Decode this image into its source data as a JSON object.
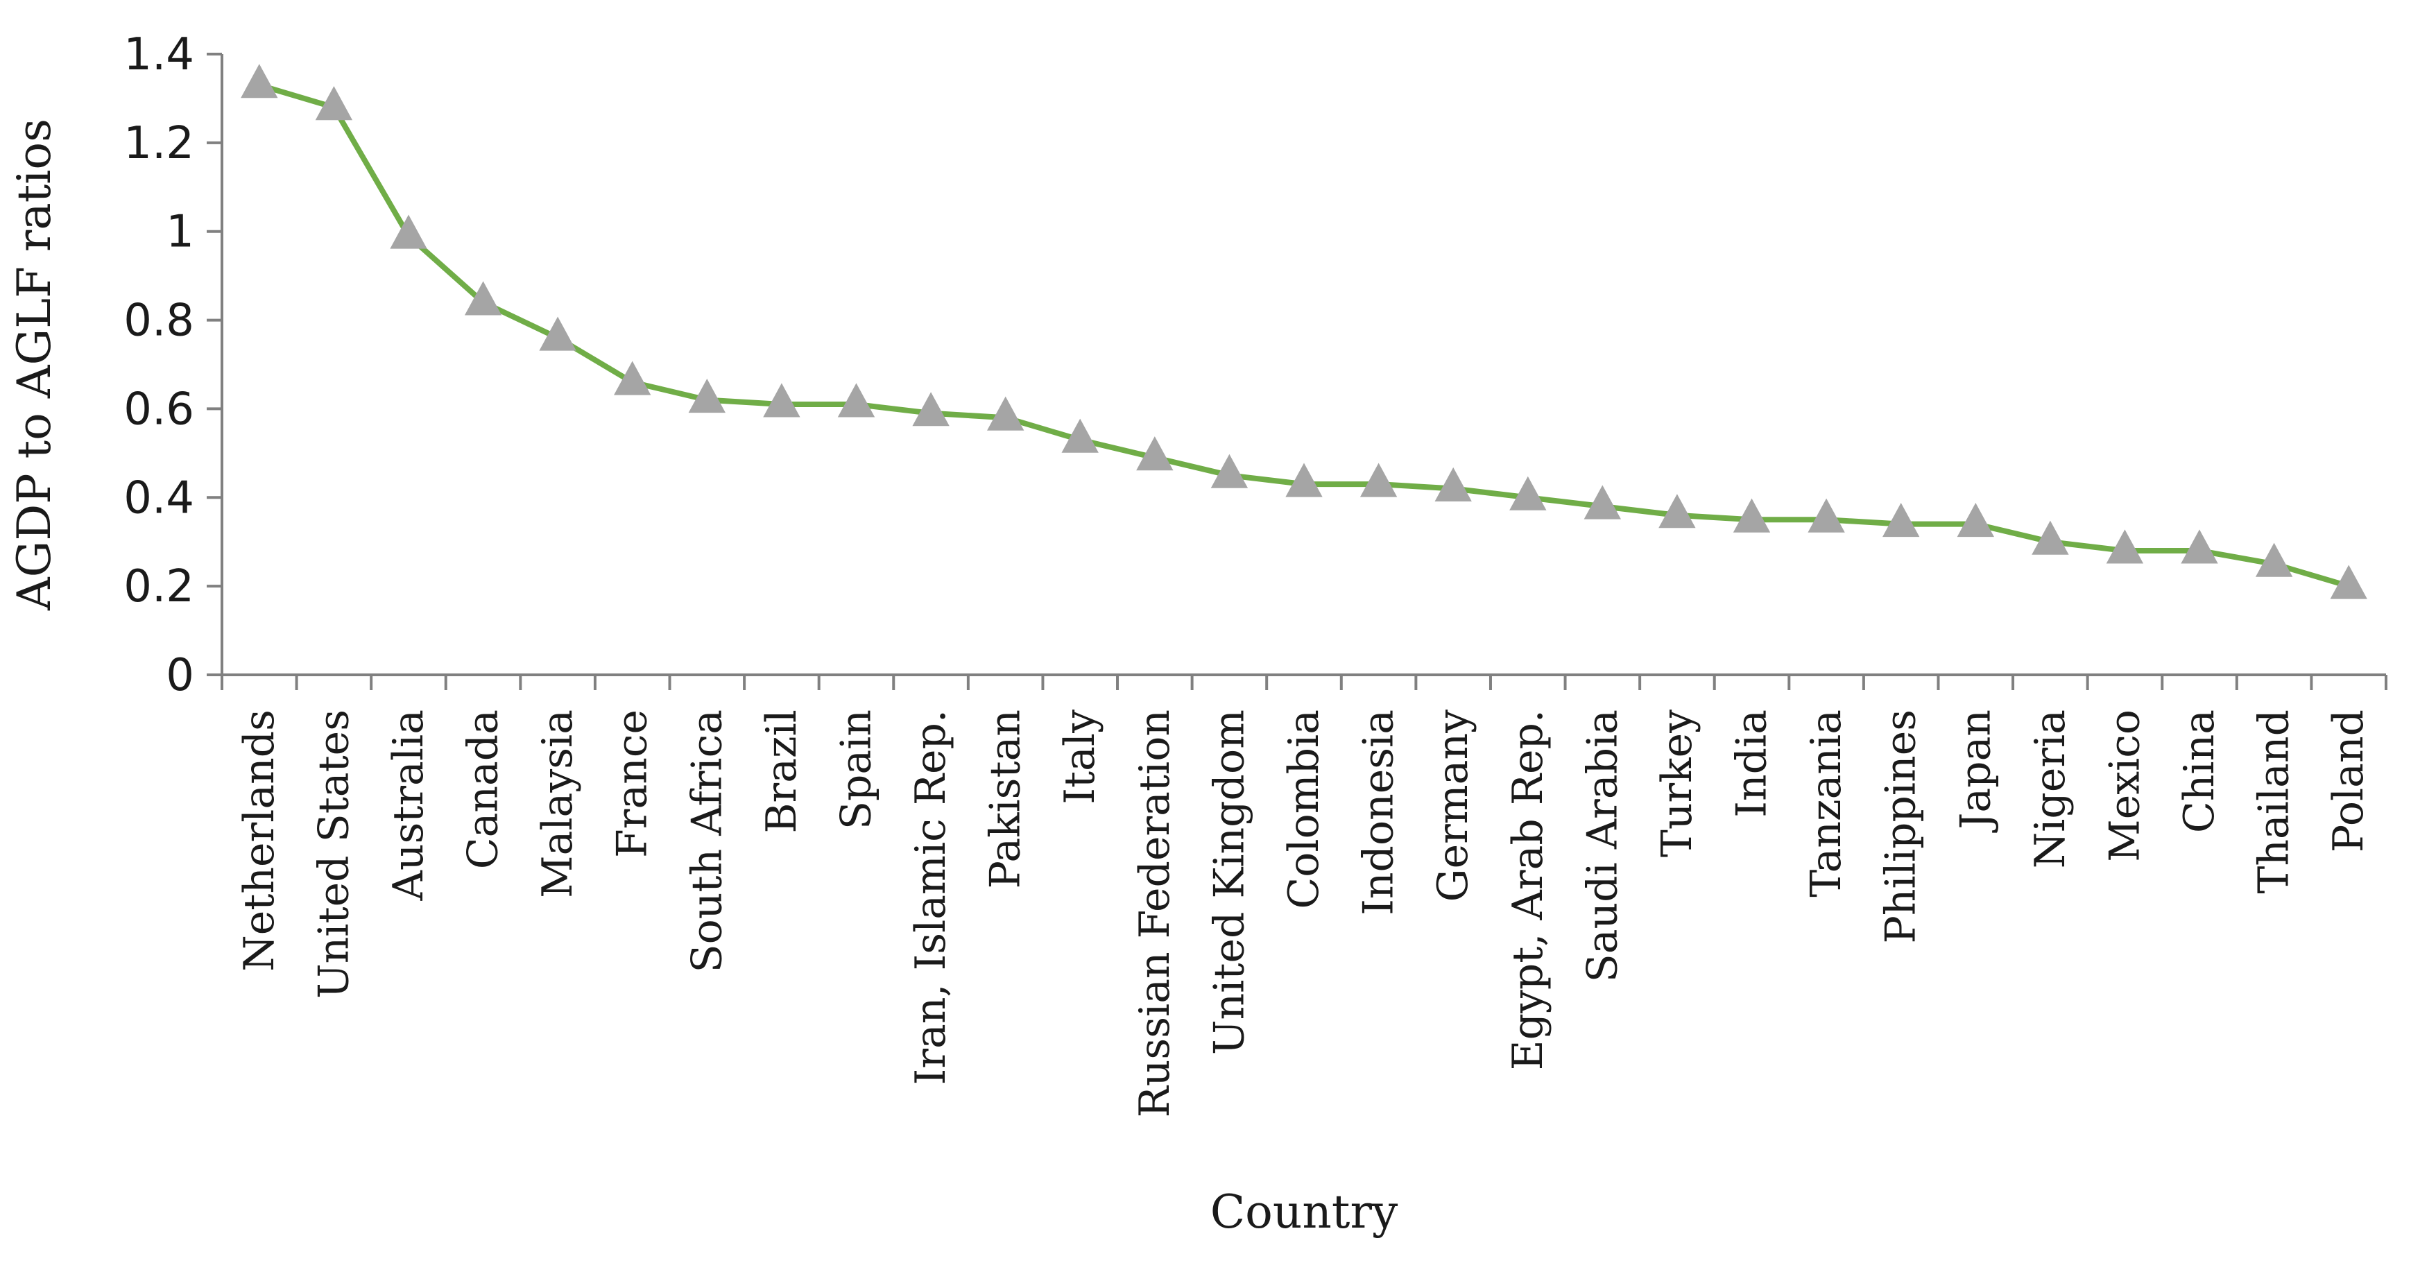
{
  "chart_data": {
    "type": "line",
    "title": "",
    "xlabel": "Country",
    "ylabel": "AGDP to AGLF ratios",
    "ylim": [
      0,
      1.4
    ],
    "yticks": [
      0,
      0.2,
      0.4,
      0.6,
      0.8,
      1,
      1.2,
      1.4
    ],
    "ytick_labels": [
      "0",
      "0.2",
      "0.4",
      "0.6",
      "0.8",
      "1",
      "1.2",
      "1.4"
    ],
    "grid": false,
    "legend": "none",
    "line_color": "#70ad47",
    "marker": "triangle",
    "marker_color": "#a5a5a5",
    "categories": [
      "Netherlands",
      "United States",
      "Australia",
      "Canada",
      "Malaysia",
      "France",
      "South Africa",
      "Brazil",
      "Spain",
      "Iran, Islamic Rep.",
      "Pakistan",
      "Italy",
      "Russian Federation",
      "United Kingdom",
      "Colombia",
      "Indonesia",
      "Germany",
      "Egypt, Arab Rep.",
      "Saudi Arabia",
      "Turkey",
      "India",
      "Tanzania",
      "Philippines",
      "Japan",
      "Nigeria",
      "Mexico",
      "China",
      "Thailand",
      "Poland"
    ],
    "values": [
      1.33,
      1.28,
      0.99,
      0.84,
      0.76,
      0.66,
      0.62,
      0.61,
      0.61,
      0.59,
      0.58,
      0.53,
      0.49,
      0.45,
      0.43,
      0.43,
      0.42,
      0.4,
      0.38,
      0.36,
      0.35,
      0.35,
      0.34,
      0.34,
      0.3,
      0.28,
      0.28,
      0.25,
      0.2
    ]
  }
}
